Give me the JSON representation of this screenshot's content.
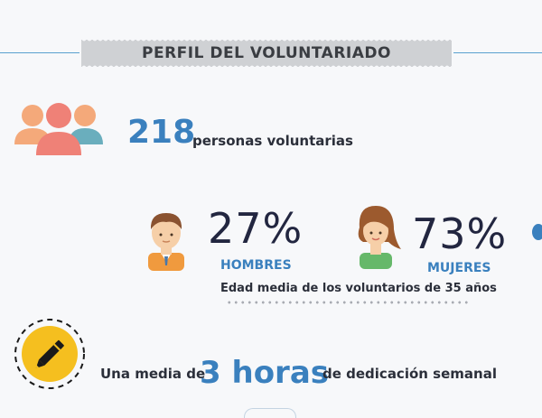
{
  "header": {
    "title": "PERFIL DEL VOLUNTARIADO"
  },
  "volunteers": {
    "count": "218",
    "label": "personas voluntarias",
    "icon": "people-group-icon"
  },
  "gender": {
    "men": {
      "percent": "27%",
      "label": "HOMBRES",
      "icon": "man-icon"
    },
    "women": {
      "percent": "73%",
      "label": "MUJERES",
      "icon": "woman-icon"
    },
    "age_note": "Edad media de los voluntarios de 35 años"
  },
  "dedication": {
    "prefix": "Una media de",
    "value": "3 horas",
    "suffix": "de dedicación semanal",
    "icon": "pencil-icon"
  },
  "colors": {
    "accent_blue": "#3a80be",
    "text_dark": "#2b2f3a",
    "banner_gray": "#cfd1d4",
    "yellow_badge": "#f5bf1f",
    "orange_person": "#f4a97a",
    "coral_person": "#ef8177",
    "teal_person": "#6aaebd"
  }
}
